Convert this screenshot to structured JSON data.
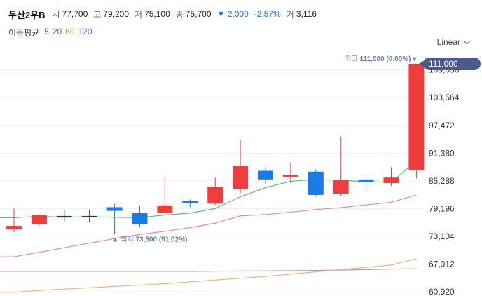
{
  "header": {
    "name": "두산2우B",
    "open_label": "시",
    "open": "77,700",
    "high_label": "고",
    "high": "79,200",
    "low_label": "저",
    "low": "75,100",
    "close_label": "종",
    "close": "75,700",
    "change": "▼ 2,000",
    "change_pct": "-2.57%",
    "volume_label": "거",
    "volume": "3,116"
  },
  "moving_average": {
    "title": "이동평균",
    "periods": [
      {
        "label": "5",
        "color": "#3aa64a"
      },
      {
        "label": "20",
        "color": "#e8474a"
      },
      {
        "label": "60",
        "color": "#f08a3c"
      },
      {
        "label": "120",
        "color": "#9b59d0"
      }
    ]
  },
  "scale_selector": {
    "label": "Linear"
  },
  "colors": {
    "up": "#ef3d3d",
    "down": "#1a7ae6",
    "ma5": "#5cc26a",
    "ma20": "#ef8a8a",
    "ma60": "#f2b27a",
    "ma120": "#b98ee0",
    "badge": "#4a5a8a"
  },
  "chart_data": {
    "type": "candlestick",
    "y_ticks": [
      "60,920",
      "67,012",
      "73,104",
      "79,196",
      "85,288",
      "91,380",
      "97,472",
      "103,564",
      "109,656"
    ],
    "y_tick_values": [
      60920,
      67012,
      73104,
      79196,
      85288,
      91380,
      97472,
      103564,
      109656
    ],
    "ylim": [
      60000,
      113000
    ],
    "candles": [
      {
        "o": 74600,
        "h": 79200,
        "l": 74000,
        "c": 75400
      },
      {
        "o": 75700,
        "h": 78000,
        "l": 75400,
        "c": 77800
      },
      {
        "o": 77500,
        "h": 78800,
        "l": 76200,
        "c": 77500
      },
      {
        "o": 77500,
        "h": 79000,
        "l": 76200,
        "c": 77500
      },
      {
        "o": 79500,
        "h": 80200,
        "l": 73500,
        "c": 78700
      },
      {
        "o": 78200,
        "h": 79800,
        "l": 75100,
        "c": 75700
      },
      {
        "o": 78200,
        "h": 86200,
        "l": 77800,
        "c": 79900
      },
      {
        "o": 80900,
        "h": 81200,
        "l": 79500,
        "c": 80400
      },
      {
        "o": 80300,
        "h": 86000,
        "l": 80000,
        "c": 84000
      },
      {
        "o": 83500,
        "h": 94200,
        "l": 82600,
        "c": 88500
      },
      {
        "o": 87500,
        "h": 88300,
        "l": 84600,
        "c": 85600
      },
      {
        "o": 86200,
        "h": 89200,
        "l": 84800,
        "c": 86600
      },
      {
        "o": 87300,
        "h": 87800,
        "l": 81800,
        "c": 82200
      },
      {
        "o": 82500,
        "h": 95000,
        "l": 82000,
        "c": 85400
      },
      {
        "o": 85600,
        "h": 86200,
        "l": 83200,
        "c": 85000
      },
      {
        "o": 84800,
        "h": 88300,
        "l": 84200,
        "c": 86000
      },
      {
        "o": 87600,
        "h": 111000,
        "l": 85800,
        "c": 111000
      }
    ],
    "ma5": [
      77200,
      77500,
      77300,
      77400,
      77300,
      77200,
      77800,
      78200,
      79200,
      81800,
      83800,
      85200,
      85600,
      85400,
      85100,
      85000,
      89600
    ],
    "ma20": [
      68600,
      69600,
      70600,
      71600,
      72600,
      73500,
      74200,
      75000,
      76000,
      77600,
      77900,
      78400,
      79000,
      79400,
      80000,
      80600,
      82200
    ],
    "ma60": [
      60800,
      61200,
      61500,
      61800,
      62100,
      62400,
      62700,
      63100,
      63500,
      63900,
      64300,
      64800,
      65300,
      65800,
      66300,
      66800,
      68200
    ],
    "ma120": [
      65400,
      65400,
      65400,
      65400,
      65400,
      65400,
      65400,
      65400,
      65450,
      65500,
      65500,
      65550,
      65600,
      65700,
      65800,
      65900,
      66000
    ],
    "max_label": "최고",
    "max_value": "111,000 (0.00%)",
    "min_label": "최저",
    "min_value": "73,500 (51.02%)",
    "current_price": "111,000"
  }
}
